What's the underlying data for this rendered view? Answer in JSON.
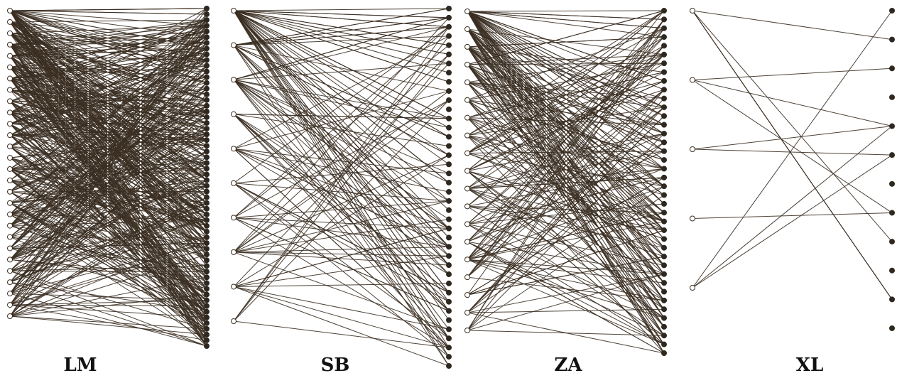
{
  "panels": [
    {
      "label": "LM",
      "left_nodes": 28,
      "right_nodes": 60,
      "edges": 520,
      "seed": 11
    },
    {
      "label": "SB",
      "left_nodes": 10,
      "right_nodes": 40,
      "edges": 150,
      "seed": 23
    },
    {
      "label": "ZA",
      "left_nodes": 19,
      "right_nodes": 40,
      "edges": 260,
      "seed": 37
    },
    {
      "label": "XL",
      "left_nodes": 5,
      "right_nodes": 12,
      "edges": 14,
      "seed": 5
    }
  ],
  "colors": {
    "edge": "#3b2f22",
    "left_node_fill": "#ffffff",
    "right_node_fill": "#2f2820"
  }
}
